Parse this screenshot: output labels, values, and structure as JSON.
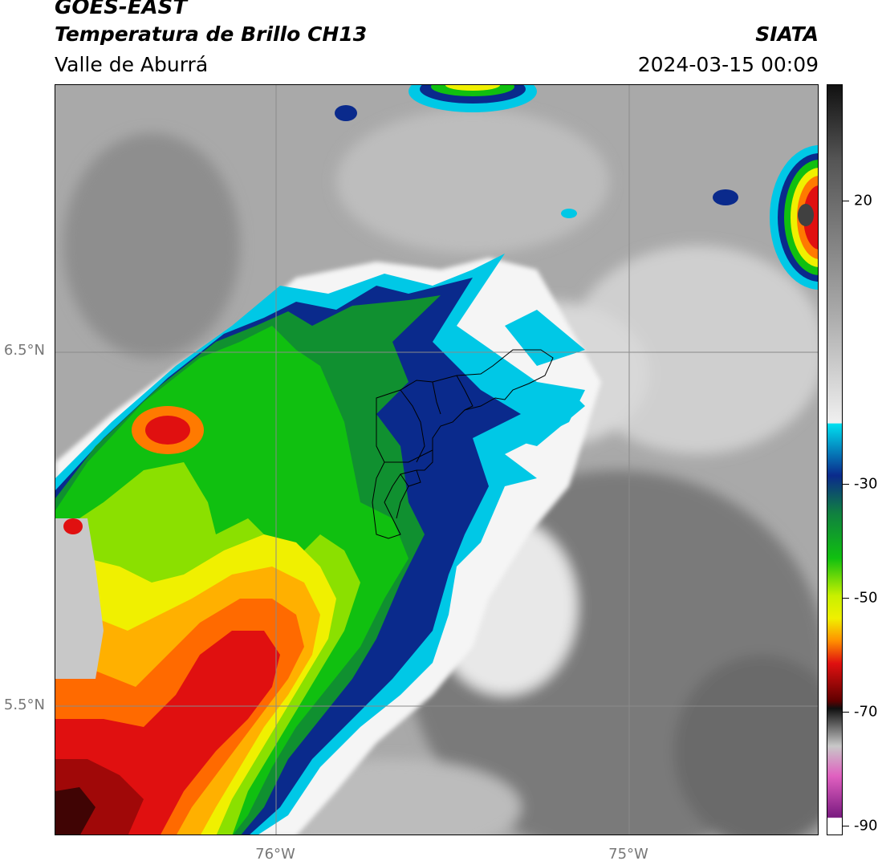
{
  "header": {
    "satellite": "GOES-EAST",
    "product": "Temperatura de Brillo CH13",
    "region": "Valle de Aburrá",
    "organization": "SIATA",
    "datetime": "2024-03-15 00:09"
  },
  "map": {
    "lat_labels": [
      "6.5°N",
      "5.5°N"
    ],
    "lon_labels": [
      "76°W",
      "75°W"
    ]
  },
  "colorbar": {
    "ticks": [
      "20",
      "-30",
      "-50",
      "-70",
      "-90"
    ],
    "colors": {
      "warm_gray": "#6e6e6e",
      "cold_white": "#f0f0f0",
      "cyan": "#00c8e6",
      "dark_blue": "#0a2a8c",
      "green": "#10c010",
      "yellow": "#f0f000",
      "orange": "#ff8c00",
      "red": "#e01010",
      "magenta": "#d040c0",
      "purple": "#7a1a80"
    }
  }
}
